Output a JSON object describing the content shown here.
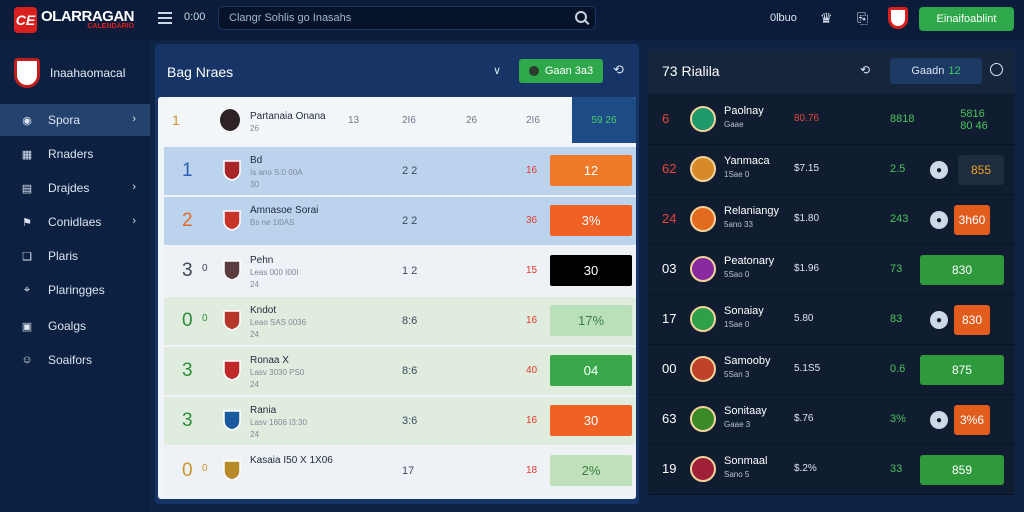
{
  "topbar": {
    "logo_badge": "CE",
    "logo_text": "OLARRAGAN",
    "logo_sub": "CALENDARIO",
    "icon_label": "0:00",
    "search_placeholder": "Clangr Sohlis go Inasahs",
    "link_label": "0lbuo",
    "join_label": "Einaifoablint"
  },
  "sidebar": {
    "title": "Inaahaomacal",
    "items": [
      {
        "label": "Spora",
        "icon": "soccer-icon",
        "has_chevron": true,
        "active": true
      },
      {
        "label": "Rnaders",
        "icon": "calendar-icon",
        "has_chevron": false
      },
      {
        "label": "Drajdes",
        "icon": "chart-icon",
        "has_chevron": true
      },
      {
        "label": "Conidlaes",
        "icon": "flag-icon",
        "has_chevron": true
      },
      {
        "label": "Plaris",
        "icon": "bookmark-icon",
        "has_chevron": false
      },
      {
        "label": "Plaringges",
        "icon": "location-icon",
        "has_chevron": false
      },
      {
        "label": "Goalgs",
        "icon": "grid-icon",
        "has_chevron": false
      },
      {
        "label": "Soaifors",
        "icon": "smile-icon",
        "has_chevron": false
      }
    ]
  },
  "middle": {
    "title": "Bag Nraes",
    "green_label": "Gaan 3a3",
    "header": {
      "rank": "1",
      "name": "Partanaia Onana",
      "sub": "26",
      "c0": "13",
      "c1": "2I6",
      "c2": "26",
      "c3": "2I6",
      "blue": "59 26"
    },
    "rows": [
      {
        "rank": "1",
        "badge": "",
        "name": "Bd",
        "sub": "Is ano S:0 00A",
        "sub2": "30",
        "c1": "2 2",
        "c2": "16",
        "pill": "12",
        "pill_color": "#f07a2a",
        "pill_text": "#ffffff",
        "rank_color": "#2a5fb2",
        "bg": "#bcd3ee",
        "logo_color": "#a6262a"
      },
      {
        "rank": "2",
        "badge": "",
        "name": "Amnasoe Sorai",
        "sub": "Bs ne 1I0AS",
        "sub2": "",
        "c1": "2 2",
        "c2": "36",
        "pill": "3%",
        "pill_color": "#f06224",
        "pill_text": "#ffffff",
        "rank_color": "#e0672a",
        "bg": "#bcd3ee",
        "logo_color": "#c7342a"
      },
      {
        "rank": "3",
        "badge": "0",
        "name": "Pehn",
        "sub": "Leas 000 I00I",
        "sub2": "24",
        "c1": "1 2",
        "c2": "15",
        "pill": "30",
        "pill_color": "#000000",
        "pill_text": "#ffffff",
        "rank_color": "#3a4453",
        "bg": "#eef2f6",
        "logo_color": "#5a3b40"
      },
      {
        "rank": "0",
        "badge": "0",
        "name": "Kndot",
        "sub": "Leao SAS 0036",
        "sub2": "24",
        "c1": "8:6",
        "c2": "16",
        "pill": "17%",
        "pill_color": "#b9e0b8",
        "pill_text": "#3c7f45",
        "rank_color": "#2c8d3a",
        "bg": "#e0ecde",
        "logo_color": "#b5382a"
      },
      {
        "rank": "3",
        "badge": "",
        "name": "Ronaa X",
        "sub": "Lasv 3030 PS0",
        "sub2": "24",
        "c1": "8:6",
        "c2": "40",
        "pill": "04",
        "pill_color": "#3aa84a",
        "pill_text": "#ffffff",
        "rank_color": "#2c8d3a",
        "bg": "#e0ecde",
        "logo_color": "#c02a2a"
      },
      {
        "rank": "3",
        "badge": "",
        "name": "Rania",
        "sub": "Lasv 1606 I3:30",
        "sub2": "24",
        "c1": "3:6",
        "c2": "16",
        "pill": "30",
        "pill_color": "#f06224",
        "pill_text": "#ffffff",
        "rank_color": "#2c8d3a",
        "bg": "#e0ecde",
        "logo_color": "#1c5aa0"
      },
      {
        "rank": "0",
        "badge": "0",
        "name": "Kasaia I50 X 1X06",
        "sub": "",
        "sub2": "",
        "c1": "17",
        "c2": "18",
        "pill": "2%",
        "pill_color": "#bfe0b9",
        "pill_text": "#3c7f45",
        "rank_color": "#c9962c",
        "bg": "#eef2f6",
        "logo_color": "#b78a2a"
      }
    ]
  },
  "right": {
    "title": "73 Rialila",
    "pill_label": "Gaadn",
    "pill_value": "12",
    "rows": [
      {
        "rank": "6",
        "name": "Paolnay",
        "sub": "Gaae",
        "v1": "80.76",
        "v2": "8818",
        "v3": "5816\n80 46",
        "v3_type": "text",
        "rank_color": "#e3473b",
        "logo_color": "#1e9a6a",
        "v1_color": "#e3473b"
      },
      {
        "rank": "62",
        "name": "Yanmaca",
        "sub": "1Sae 0",
        "v1": "$7.15",
        "v2": "2.5",
        "v3": "855",
        "v3_type": "dark",
        "rank_color": "#e3473b",
        "logo_color": "#d88a2a",
        "v1_color": "#dce4ef"
      },
      {
        "rank": "24",
        "name": "Relaniangy",
        "sub": "5ano 33",
        "v1": "$1.80",
        "v2": "243",
        "v3": "3h60",
        "v3_type": "orange",
        "rank_color": "#e3473b",
        "logo_color": "#e26b1f",
        "v1_color": "#dce4ef"
      },
      {
        "rank": "03",
        "name": "Peatonary",
        "sub": "5Sao 0",
        "v1": "$1.96",
        "v2": "73",
        "v3": "830",
        "v3_type": "green",
        "rank_color": "#ffffff",
        "logo_color": "#8a2aa0",
        "v1_color": "#dce4ef"
      },
      {
        "rank": "17",
        "name": "Sonaiay",
        "sub": "1Sae 0",
        "v1": "5.80",
        "v2": "83",
        "v3": "830",
        "v3_type": "orange",
        "rank_color": "#ffffff",
        "logo_color": "#2ea04a",
        "v1_color": "#dce4ef"
      },
      {
        "rank": "00",
        "name": "Samooby",
        "sub": "5San 3",
        "v1": "5.1S5",
        "v2": "0.6",
        "v3": "875",
        "v3_type": "green",
        "rank_color": "#ffffff",
        "logo_color": "#c0402a",
        "v1_color": "#dce4ef"
      },
      {
        "rank": "63",
        "name": "Sonitaay",
        "sub": "Gaae 3",
        "v1": "$.76",
        "v2": "3%",
        "v3": "3%6",
        "v3_type": "orange",
        "rank_color": "#ffffff",
        "logo_color": "#3a8a2a",
        "v1_color": "#dce4ef"
      },
      {
        "rank": "19",
        "name": "Sonmaal",
        "sub": "Sano 5",
        "v1": "$.2%",
        "v2": "33",
        "v3": "859",
        "v3_type": "green",
        "rank_color": "#ffffff",
        "logo_color": "#a0203a",
        "v1_color": "#dce4ef"
      }
    ]
  }
}
